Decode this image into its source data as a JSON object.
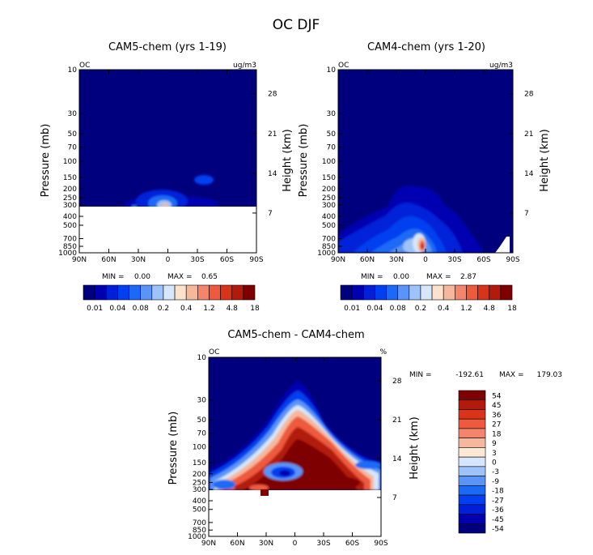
{
  "figure_title": "OC DJF",
  "colors": {
    "seq_scale": [
      "#00007f",
      "#0000b2",
      "#0020d8",
      "#0040f0",
      "#1a6af5",
      "#5a94f7",
      "#9ec2fa",
      "#d6e6fc",
      "#fbe2cc",
      "#f6b89c",
      "#f2856b",
      "#ee5a3e",
      "#d9331a",
      "#b21a0c",
      "#7f0000"
    ],
    "div_scale": [
      "#00007f",
      "#0000b2",
      "#0020d8",
      "#0040f0",
      "#1a6af5",
      "#5a94f7",
      "#9ec2fa",
      "#d6e6fc",
      "#fde8d6",
      "#f6b89c",
      "#f2856b",
      "#ee5a3e",
      "#d9331a",
      "#b21a0c",
      "#7f0000"
    ]
  },
  "chart_data": [
    {
      "type": "heatmap",
      "id": "cam5",
      "title": "CAM5-chem (yrs 1-19)",
      "left_label": "OC",
      "units": "ug/m3",
      "ylabel": "Pressure (mb)",
      "ylabel_right": "Height (km)",
      "x_ticks": [
        "90N",
        "60N",
        "30N",
        "0",
        "30S",
        "60S",
        "90S"
      ],
      "y_ticks": [
        "10",
        "30",
        "50",
        "70",
        "100",
        "150",
        "200",
        "250",
        "300",
        "400",
        "500",
        "700",
        "850",
        "1000"
      ],
      "y_right_ticks": [
        "28",
        "21",
        "14",
        "7"
      ],
      "stats": {
        "min_label": "MIN =",
        "min": "0.00",
        "max_label": "MAX =",
        "max": "0.65"
      },
      "colorbar_labels": [
        "0.01",
        "0.04",
        "0.08",
        "0.2",
        "0.4",
        "1.2",
        "4.8",
        "18"
      ],
      "data_cutoff_mb": 300,
      "features": [
        {
          "lat": 2,
          "p_mb": 300,
          "lat_width": 14,
          "p_top_mb": 220,
          "level": 8
        },
        {
          "lat": -25,
          "p_mb": 150,
          "lat_width": 10,
          "p_top_mb": 135,
          "level": 3
        }
      ]
    },
    {
      "type": "heatmap",
      "id": "cam4",
      "title": "CAM4-chem (yrs 1-20)",
      "left_label": "OC",
      "units": "ug/m3",
      "ylabel": "Pressure (mb)",
      "ylabel_right": "Height (km)",
      "x_ticks": [
        "90N",
        "60N",
        "30N",
        "0",
        "30S",
        "60S",
        "90S"
      ],
      "y_ticks": [
        "10",
        "30",
        "50",
        "70",
        "100",
        "150",
        "200",
        "250",
        "300",
        "400",
        "500",
        "700",
        "850",
        "1000"
      ],
      "y_right_ticks": [
        "28",
        "21",
        "14",
        "7"
      ],
      "stats": {
        "min_label": "MIN =",
        "min": "0.00",
        "max_label": "MAX =",
        "max": "2.87"
      },
      "colorbar_labels": [
        "0.01",
        "0.04",
        "0.08",
        "0.2",
        "0.4",
        "1.2",
        "4.8",
        "18"
      ],
      "features": [
        {
          "lat": 8,
          "p_mb": 1000,
          "lat_width": 95,
          "p_top_mb": 200,
          "level": 12
        }
      ]
    },
    {
      "type": "heatmap",
      "id": "diff",
      "title": "CAM5-chem - CAM4-chem",
      "left_label": "OC",
      "units": "%",
      "ylabel": "Pressure (mb)",
      "ylabel_right": "Height (km)",
      "x_ticks": [
        "90N",
        "60N",
        "30N",
        "0",
        "30S",
        "60S",
        "90S"
      ],
      "y_ticks": [
        "10",
        "30",
        "50",
        "70",
        "100",
        "150",
        "200",
        "250",
        "300",
        "400",
        "500",
        "700",
        "850",
        "1000"
      ],
      "y_right_ticks": [
        "28",
        "21",
        "14",
        "7"
      ],
      "stats": {
        "min_label": "MIN =",
        "min": "-192.61",
        "max_label": "MAX =",
        "max": "179.03"
      },
      "colorbar_labels": [
        "54",
        "45",
        "36",
        "27",
        "18",
        "9",
        "3",
        "0",
        "-3",
        "-9",
        "-18",
        "-27",
        "-36",
        "-45",
        "-54"
      ],
      "data_cutoff_mb": 300,
      "features": [
        {
          "lat": 0,
          "p_mb": 300,
          "lat_width": 160,
          "p_top_mb": 20,
          "level": "plume"
        }
      ]
    }
  ]
}
